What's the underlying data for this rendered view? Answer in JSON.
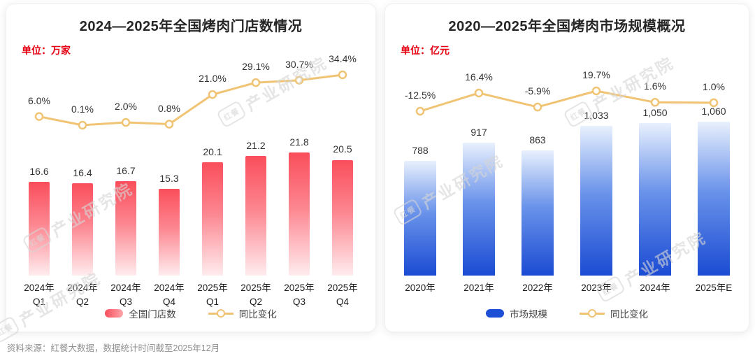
{
  "footer": {
    "source_note": "资料来源：红餐大数据，数据统计时间截至2025年12月"
  },
  "watermark": {
    "logo_text": "红餐",
    "label": "产业研究院"
  },
  "chart_data": [
    {
      "type": "bar+line",
      "title": "2024—2025年全国烤肉门店数情况",
      "unit_label": "单位：万家",
      "xlabel": "",
      "ylabel": "万家",
      "grid": false,
      "legend_position": "bottom",
      "categories": [
        [
          "2024年",
          "Q1"
        ],
        [
          "2024年",
          "Q2"
        ],
        [
          "2024年",
          "Q3"
        ],
        [
          "2024年",
          "Q4"
        ],
        [
          "2025年",
          "Q1"
        ],
        [
          "2025年",
          "Q2"
        ],
        [
          "2025年",
          "Q3"
        ],
        [
          "2025年",
          "Q4"
        ]
      ],
      "bar_series": {
        "name": "全国门店数",
        "values": [
          16.6,
          16.4,
          16.7,
          15.3,
          20.1,
          21.2,
          21.8,
          20.5
        ],
        "labels": [
          "16.6",
          "16.4",
          "16.7",
          "15.3",
          "20.1",
          "21.2",
          "21.8",
          "20.5"
        ],
        "ylim": [
          0,
          24
        ]
      },
      "line_series": {
        "name": "同比变化",
        "values": [
          6.0,
          0.1,
          2.0,
          0.8,
          21.0,
          29.1,
          30.7,
          34.4
        ],
        "labels": [
          "6.0%",
          "0.1%",
          "2.0%",
          "0.8%",
          "21.0%",
          "29.1%",
          "30.7%",
          "34.4%"
        ],
        "ylim": [
          -5,
          40
        ]
      },
      "colors": {
        "bar_gradient": [
          "#fa4e5b",
          "#fc8690",
          "#ffecee"
        ],
        "line": "#f0c474"
      }
    },
    {
      "type": "bar+line",
      "title": "2020—2025年全国烤肉市场规模概况",
      "unit_label": "单位：亿元",
      "xlabel": "",
      "ylabel": "亿元",
      "grid": false,
      "legend_position": "bottom",
      "categories": [
        [
          "2020年"
        ],
        [
          "2021年"
        ],
        [
          "2022年"
        ],
        [
          "2023年"
        ],
        [
          "2024年"
        ],
        [
          "2025年E"
        ]
      ],
      "bar_series": {
        "name": "市场规模",
        "values": [
          788,
          917,
          863,
          1033,
          1050,
          1060
        ],
        "labels": [
          "788",
          "917",
          "863",
          "1,033",
          "1,050",
          "1,060"
        ],
        "ylim": [
          0,
          1200
        ]
      },
      "line_series": {
        "name": "同比变化",
        "values": [
          -12.5,
          16.4,
          -5.9,
          19.7,
          1.6,
          1.0
        ],
        "labels": [
          "-12.5%",
          "16.4%",
          "-5.9%",
          "19.7%",
          "1.6%",
          "1.0%"
        ],
        "ylim": [
          -20,
          25
        ]
      },
      "colors": {
        "bar_gradient": [
          "#e8f0fd",
          "#6a93ea",
          "#1b4bd3"
        ],
        "line": "#f0c474"
      }
    }
  ]
}
